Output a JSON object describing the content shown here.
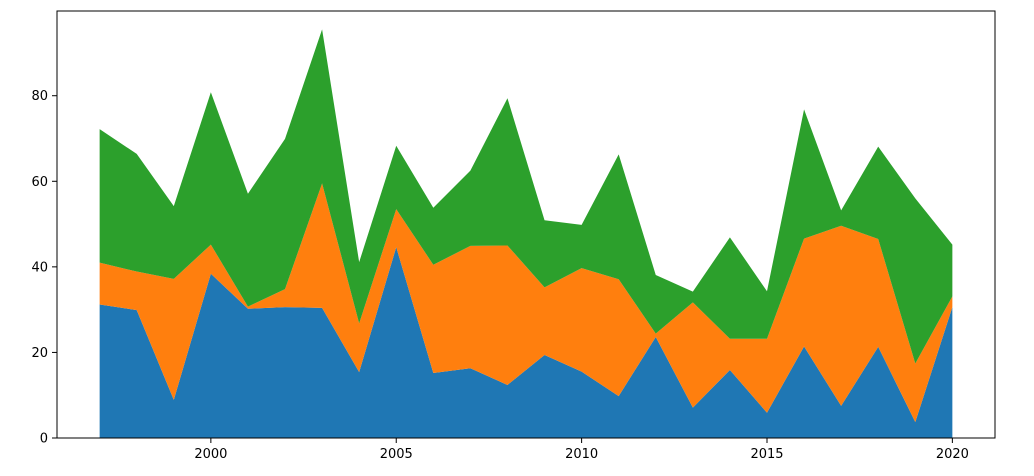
{
  "chart_data": {
    "type": "area",
    "stacked": true,
    "title": "",
    "xlabel": "",
    "ylabel": "",
    "x": [
      1997,
      1998,
      1999,
      2000,
      2001,
      2002,
      2003,
      2004,
      2005,
      2006,
      2007,
      2008,
      2009,
      2010,
      2011,
      2012,
      2013,
      2014,
      2015,
      2016,
      2017,
      2018,
      2019,
      2020
    ],
    "series": [
      {
        "color": "#1f77b4",
        "values": [
          31.2,
          29.9,
          8.9,
          38.4,
          30.2,
          30.6,
          30.4,
          15.4,
          44.6,
          15.2,
          16.3,
          12.4,
          19.4,
          15.5,
          9.8,
          23.6,
          7.1,
          15.9,
          5.9,
          21.4,
          7.5,
          21.3,
          3.7,
          30.6
        ]
      },
      {
        "color": "#ff7f0e",
        "values": [
          9.8,
          9.0,
          28.3,
          6.8,
          0.5,
          4.2,
          29.1,
          11.4,
          8.9,
          25.3,
          28.6,
          32.6,
          15.8,
          24.2,
          27.3,
          0.8,
          24.6,
          7.3,
          17.3,
          25.2,
          42.1,
          25.2,
          13.7,
          2.5
        ]
      },
      {
        "color": "#2ca02c",
        "values": [
          31.2,
          27.5,
          17.0,
          35.6,
          26.4,
          35.1,
          36.0,
          14.3,
          14.8,
          13.3,
          17.6,
          34.4,
          15.7,
          10.1,
          29.2,
          13.7,
          2.5,
          23.7,
          11.1,
          30.2,
          3.6,
          21.6,
          38.6,
          12.1
        ]
      }
    ],
    "xlim": [
      1995.85,
      2021.15
    ],
    "ylim": [
      0,
      99.8
    ],
    "x_ticks": [
      2000,
      2005,
      2010,
      2015,
      2020
    ],
    "y_ticks": [
      0,
      20,
      40,
      60,
      80
    ],
    "grid": false,
    "legend": "none"
  }
}
